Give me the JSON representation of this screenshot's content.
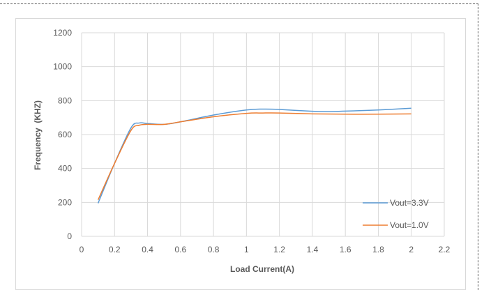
{
  "chart_data": {
    "type": "line",
    "title": "",
    "xlabel": "Load Current(A)",
    "ylabel": "Frequency  (KHZ)",
    "xlim": [
      0,
      2.2
    ],
    "ylim": [
      0,
      1200
    ],
    "x_ticks": [
      "0",
      "0.2",
      "0.4",
      "0.6",
      "0.8",
      "1",
      "1.2",
      "1.4",
      "1.6",
      "1.8",
      "2",
      "2.2"
    ],
    "y_ticks": [
      "0",
      "200",
      "400",
      "600",
      "800",
      "1000",
      "1200"
    ],
    "grid": true,
    "legend_position": "bottom-right",
    "series": [
      {
        "name": "Vout=3.3V",
        "color": "#5b9bd5",
        "x": [
          0.1,
          0.2,
          0.3,
          0.35,
          0.4,
          0.5,
          0.6,
          0.8,
          1.0,
          1.1,
          1.2,
          1.4,
          1.5,
          1.6,
          1.8,
          2.0
        ],
        "y": [
          195,
          430,
          640,
          668,
          665,
          660,
          675,
          715,
          745,
          750,
          748,
          737,
          735,
          738,
          745,
          755
        ]
      },
      {
        "name": "Vout=1.0V",
        "color": "#ed7d31",
        "x": [
          0.1,
          0.2,
          0.3,
          0.35,
          0.4,
          0.5,
          0.6,
          0.8,
          1.0,
          1.1,
          1.2,
          1.4,
          1.6,
          1.8,
          2.0
        ],
        "y": [
          215,
          430,
          625,
          655,
          660,
          660,
          675,
          705,
          725,
          727,
          727,
          722,
          720,
          720,
          722
        ]
      }
    ]
  }
}
